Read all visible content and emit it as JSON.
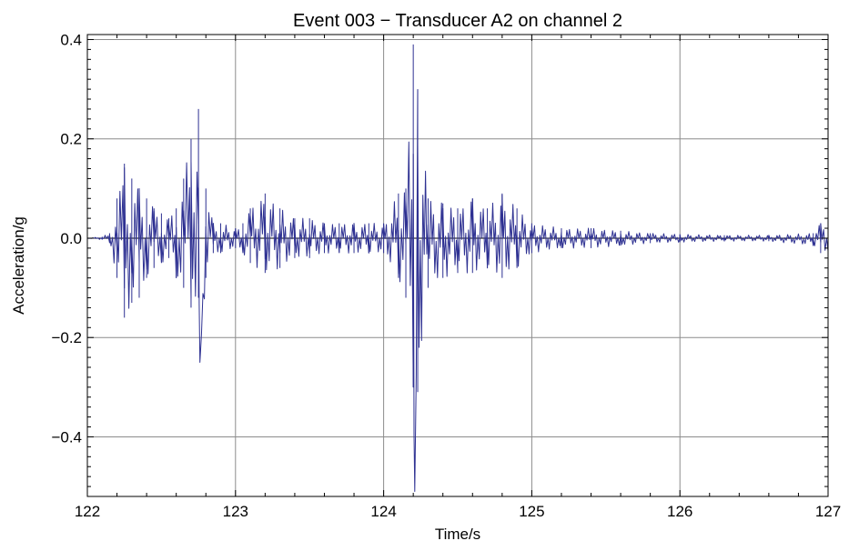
{
  "chart_data": {
    "type": "line",
    "title": "Event 003 − Transducer A2 on channel 2",
    "xlabel": "Time/s",
    "ylabel": "Acceleration/g",
    "xlim": [
      122,
      127
    ],
    "ylim": [
      -0.52,
      0.41
    ],
    "x_ticks": [
      122,
      123,
      124,
      125,
      126,
      127
    ],
    "y_ticks": [
      -0.4,
      -0.2,
      0.0,
      0.2,
      0.4
    ],
    "x_tick_labels": [
      "122",
      "123",
      "124",
      "125",
      "126",
      "127"
    ],
    "y_tick_labels": [
      "−0.4",
      "−0.2",
      "0.0",
      "0.2",
      "0.4"
    ],
    "grid": true,
    "zero_line": true,
    "colors": {
      "series": "#2e3192",
      "grid": "#8c8c8c",
      "zero_line": "#000000"
    },
    "series": [
      {
        "x": [
          122.0,
          122.1,
          122.15,
          122.2,
          122.25,
          122.3,
          122.35,
          122.4,
          122.45,
          122.5,
          122.55,
          122.6,
          122.65,
          122.7,
          122.75,
          122.76,
          122.8,
          122.85,
          122.9,
          123.0,
          123.05,
          123.1,
          123.2,
          123.3,
          123.4,
          123.5,
          123.6,
          123.7,
          123.8,
          123.9,
          124.0,
          124.1,
          124.15,
          124.2,
          124.21,
          124.23,
          124.3,
          124.4,
          124.5,
          124.6,
          124.7,
          124.8,
          124.9,
          125.0,
          125.2,
          125.4,
          125.6,
          125.8,
          126.0,
          126.3,
          126.6,
          126.9,
          126.95,
          127.0
        ],
        "y": [
          0.0,
          0.003,
          0.01,
          0.08,
          0.15,
          0.12,
          0.1,
          0.08,
          0.06,
          0.05,
          0.04,
          0.06,
          0.12,
          0.2,
          0.26,
          -0.25,
          0.1,
          0.03,
          0.03,
          0.02,
          0.03,
          0.06,
          0.09,
          0.06,
          0.04,
          0.04,
          0.03,
          0.03,
          0.03,
          0.03,
          0.03,
          0.09,
          0.1,
          0.39,
          -0.51,
          0.3,
          0.08,
          0.07,
          0.06,
          0.08,
          0.06,
          0.09,
          0.06,
          0.03,
          0.02,
          0.02,
          0.015,
          0.01,
          0.008,
          0.006,
          0.006,
          0.01,
          0.03,
          0.03
        ],
        "y_min": [
          0.0,
          -0.003,
          -0.01,
          -0.08,
          -0.16,
          -0.13,
          -0.12,
          -0.08,
          -0.06,
          -0.05,
          -0.04,
          -0.08,
          -0.1,
          -0.14,
          -0.12,
          -0.25,
          -0.08,
          -0.03,
          -0.03,
          -0.02,
          -0.03,
          -0.05,
          -0.07,
          -0.06,
          -0.04,
          -0.04,
          -0.03,
          -0.03,
          -0.03,
          -0.03,
          -0.03,
          -0.08,
          -0.12,
          -0.3,
          -0.51,
          -0.31,
          -0.1,
          -0.08,
          -0.07,
          -0.07,
          -0.06,
          -0.08,
          -0.06,
          -0.03,
          -0.02,
          -0.02,
          -0.015,
          -0.01,
          -0.008,
          -0.006,
          -0.006,
          -0.015,
          -0.03,
          -0.03
        ]
      }
    ]
  }
}
